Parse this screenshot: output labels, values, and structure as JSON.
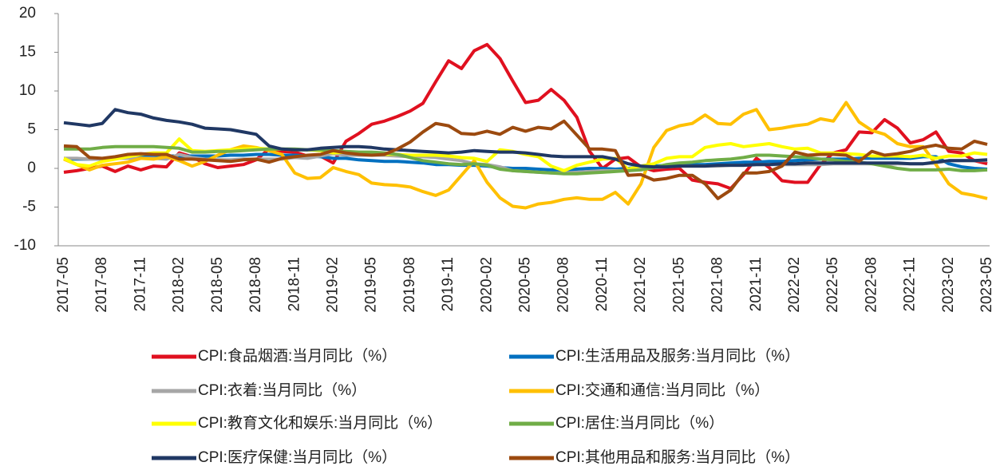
{
  "chart_data": {
    "type": "line",
    "categories": [
      "2017-05",
      null,
      null,
      "2017-08",
      null,
      null,
      "2017-11",
      null,
      null,
      "2018-02",
      null,
      null,
      "2018-05",
      null,
      null,
      "2018-08",
      null,
      null,
      "2018-11",
      null,
      null,
      "2019-02",
      null,
      null,
      "2019-05",
      null,
      null,
      "2019-08",
      null,
      null,
      "2019-11",
      null,
      null,
      "2020-02",
      null,
      null,
      "2020-05",
      null,
      null,
      "2020-08",
      null,
      null,
      "2020-11",
      null,
      null,
      "2021-02",
      null,
      null,
      "2021-05",
      null,
      null,
      "2021-08",
      null,
      null,
      "2021-11",
      null,
      null,
      "2022-02",
      null,
      null,
      "2022-05",
      null,
      null,
      "2022-08",
      null,
      null,
      "2022-11",
      null,
      null,
      "2023-02",
      null,
      null,
      "2023-05"
    ],
    "ylim": [
      -10,
      20
    ],
    "yticks": [
      -10,
      -5,
      0,
      5,
      10,
      15,
      20
    ],
    "series": [
      {
        "name": "CPI:食品烟酒:当月同比（%）",
        "color": "#e0101f",
        "values": [
          -0.5,
          -0.3,
          0,
          0.3,
          -0.4,
          0.3,
          -0.2,
          0.3,
          0.2,
          2.0,
          1.5,
          0.6,
          0.1,
          0.3,
          0.5,
          1.1,
          2.5,
          2.2,
          2.1,
          1.6,
          1.6,
          0.7,
          3.5,
          4.5,
          5.7,
          6.1,
          6.7,
          7.4,
          8.4,
          11.2,
          13.9,
          12.9,
          15.2,
          16.0,
          14.2,
          11.3,
          8.5,
          8.8,
          10.2,
          8.8,
          6.6,
          2.2,
          0.0,
          1.2,
          1.4,
          0.2,
          -0.3,
          -0.1,
          0.0,
          -1.5,
          -1.8,
          -2.0,
          -2.6,
          -0.8,
          1.3,
          0.1,
          -1.6,
          -1.8,
          -1.8,
          0.5,
          2.0,
          2.4,
          4.7,
          4.6,
          6.3,
          5.2,
          3.3,
          3.7,
          4.7,
          2.2,
          2.0,
          1.0,
          0.6
        ]
      },
      {
        "name": "CPI:生活用品及服务:当月同比（%）",
        "color": "#0070c0",
        "values": [
          1.2,
          1.2,
          1.2,
          1.2,
          1.3,
          1.4,
          1.5,
          1.5,
          1.6,
          1.6,
          1.6,
          1.6,
          1.6,
          1.7,
          1.7,
          1.8,
          1.8,
          1.7,
          1.7,
          1.6,
          1.5,
          1.3,
          1.3,
          1.1,
          1.0,
          0.9,
          0.9,
          0.8,
          0.7,
          0.5,
          0.5,
          0.4,
          0.4,
          0.3,
          0.1,
          0.0,
          0.0,
          -0.1,
          -0.2,
          -0.3,
          -0.1,
          0.0,
          0.0,
          -0.1,
          0.0,
          0.2,
          0.3,
          0.4,
          0.4,
          0.5,
          0.5,
          0.6,
          0.7,
          0.8,
          0.8,
          0.9,
          0.9,
          1.0,
          1.1,
          1.2,
          1.2,
          1.2,
          1.3,
          1.3,
          1.3,
          1.3,
          1.3,
          1.5,
          1.5,
          0.6,
          0.2,
          0.0,
          -0.1
        ]
      },
      {
        "name": "CPI:衣着:当月同比（%）",
        "color": "#a6a6a6",
        "values": [
          1.3,
          1.3,
          1.2,
          1.2,
          1.3,
          1.3,
          1.3,
          1.3,
          1.2,
          1.8,
          1.4,
          1.2,
          1.1,
          1.1,
          1.2,
          1.2,
          1.2,
          1.2,
          1.4,
          1.3,
          1.6,
          1.9,
          1.7,
          1.7,
          1.7,
          1.7,
          1.6,
          1.5,
          1.5,
          1.4,
          1.2,
          1.0,
          0.6,
          0.5,
          0.2,
          -0.3,
          -0.4,
          -0.5,
          -0.6,
          -0.6,
          -0.5,
          -0.4,
          -0.3,
          -0.3,
          -0.3,
          -0.1,
          0.1,
          0.2,
          0.3,
          0.3,
          0.3,
          0.3,
          0.4,
          0.4,
          0.5,
          0.5,
          0.5,
          0.5,
          0.5,
          0.5,
          0.6,
          0.6,
          0.6,
          0.6,
          0.5,
          0.6,
          0.6,
          0.6,
          0.7,
          1.0,
          1.0,
          1.0,
          1.0
        ]
      },
      {
        "name": "CPI:交通和通信:当月同比（%）",
        "color": "#ffc000",
        "values": [
          1.2,
          0.5,
          -0.2,
          0.4,
          0.6,
          0.8,
          1.3,
          1.2,
          1.5,
          1.0,
          0.3,
          0.9,
          1.7,
          2.4,
          2.9,
          2.7,
          2.3,
          1.8,
          -0.6,
          -1.3,
          -1.2,
          0.1,
          -0.4,
          -0.8,
          -1.9,
          -2.1,
          -2.2,
          -2.4,
          -3.0,
          -3.5,
          -2.8,
          -0.9,
          1.0,
          -1.8,
          -3.8,
          -4.9,
          -5.1,
          -4.6,
          -4.4,
          -4.0,
          -3.8,
          -4.0,
          -4.0,
          -3.1,
          -4.6,
          -2.0,
          2.7,
          4.9,
          5.5,
          5.8,
          6.9,
          5.8,
          5.7,
          7.0,
          7.6,
          5.0,
          5.2,
          5.5,
          5.7,
          6.4,
          6.1,
          8.5,
          6.0,
          4.9,
          4.4,
          3.2,
          2.8,
          2.8,
          0.5,
          -2.0,
          -3.2,
          -3.5,
          -3.9
        ]
      },
      {
        "name": "CPI:教育文化和娱乐:当月同比（%）",
        "color": "#ffff00",
        "values": [
          1.3,
          0.5,
          0.3,
          0.9,
          1.2,
          1.5,
          1.8,
          2.0,
          2.0,
          3.8,
          2.3,
          2.2,
          2.3,
          2.4,
          2.5,
          2.6,
          2.5,
          2.5,
          2.4,
          2.4,
          2.3,
          2.0,
          2.1,
          2.0,
          1.9,
          1.8,
          1.8,
          1.7,
          1.7,
          1.7,
          1.6,
          1.4,
          1.3,
          0.9,
          2.4,
          2.2,
          1.8,
          1.5,
          0.3,
          -0.3,
          0.4,
          0.8,
          1.2,
          1.3,
          -0.1,
          0.3,
          0.6,
          1.3,
          1.5,
          1.5,
          2.7,
          3.0,
          3.2,
          2.8,
          3.0,
          3.2,
          2.8,
          2.5,
          2.6,
          2.0,
          2.0,
          1.9,
          1.8,
          1.6,
          1.6,
          1.6,
          1.5,
          1.7,
          1.3,
          1.6,
          1.6,
          2.0,
          1.8
        ]
      },
      {
        "name": "CPI:居住:当月同比（%）",
        "color": "#70ad47",
        "values": [
          2.5,
          2.5,
          2.5,
          2.7,
          2.8,
          2.8,
          2.8,
          2.8,
          2.7,
          2.6,
          2.1,
          2.1,
          2.2,
          2.2,
          2.3,
          2.4,
          2.5,
          2.5,
          2.5,
          2.4,
          2.4,
          2.3,
          2.2,
          2.1,
          2.1,
          2.0,
          1.8,
          1.4,
          1.0,
          0.8,
          0.6,
          0.5,
          0.6,
          0.4,
          -0.1,
          -0.3,
          -0.4,
          -0.5,
          -0.6,
          -0.7,
          -0.7,
          -0.6,
          -0.5,
          -0.4,
          -0.3,
          -0.2,
          0.1,
          0.5,
          0.7,
          0.8,
          1.0,
          1.1,
          1.2,
          1.4,
          1.7,
          1.7,
          1.6,
          1.5,
          1.4,
          1.2,
          1.1,
          0.9,
          0.8,
          0.6,
          0.3,
          0.0,
          -0.2,
          -0.2,
          -0.2,
          -0.1,
          -0.3,
          -0.3,
          -0.2
        ]
      },
      {
        "name": "CPI:医疗保健:当月同比（%）",
        "color": "#203864",
        "values": [
          5.9,
          5.7,
          5.5,
          5.8,
          7.6,
          7.2,
          7.0,
          6.5,
          6.2,
          6.0,
          5.7,
          5.2,
          5.1,
          5.0,
          4.7,
          4.4,
          2.9,
          2.5,
          2.4,
          2.4,
          2.6,
          2.7,
          2.8,
          2.8,
          2.7,
          2.5,
          2.4,
          2.3,
          2.2,
          2.1,
          2.0,
          2.1,
          2.3,
          2.2,
          2.1,
          2.1,
          2.0,
          1.8,
          1.6,
          1.5,
          1.5,
          1.5,
          1.5,
          1.2,
          0.6,
          0.3,
          0.2,
          0.2,
          0.3,
          0.3,
          0.3,
          0.4,
          0.4,
          0.4,
          0.5,
          0.5,
          0.6,
          0.6,
          0.7,
          0.7,
          0.7,
          0.7,
          0.7,
          0.7,
          0.7,
          0.7,
          0.6,
          0.6,
          0.8,
          1.0,
          1.0,
          1.0,
          1.1
        ]
      },
      {
        "name": "CPI:其他用品和服务:当月同比（%）",
        "color": "#9c4a0f",
        "values": [
          2.9,
          2.8,
          1.4,
          1.3,
          1.5,
          1.8,
          1.9,
          1.8,
          1.8,
          1.2,
          1.2,
          1.1,
          1.0,
          0.9,
          1.1,
          1.2,
          0.8,
          1.3,
          1.5,
          1.7,
          1.8,
          2.3,
          2.0,
          1.8,
          1.7,
          1.8,
          2.5,
          3.4,
          4.7,
          5.8,
          5.5,
          4.5,
          4.4,
          4.8,
          4.4,
          5.3,
          4.8,
          5.3,
          5.1,
          6.1,
          4.3,
          2.5,
          2.5,
          2.3,
          -0.9,
          -0.8,
          -1.5,
          -1.3,
          -0.9,
          -0.9,
          -2.0,
          -3.9,
          -2.8,
          -0.6,
          -0.6,
          -0.4,
          0.3,
          2.1,
          1.7,
          1.8,
          1.8,
          1.7,
          0.9,
          2.2,
          1.7,
          1.9,
          2.2,
          2.7,
          3.0,
          2.6,
          2.5,
          3.5,
          3.1
        ]
      }
    ]
  }
}
